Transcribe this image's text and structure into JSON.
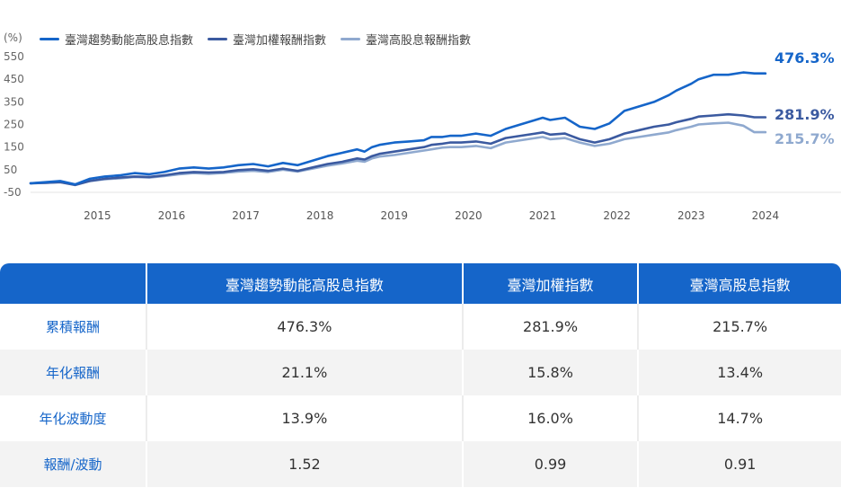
{
  "chart_data": {
    "type": "line",
    "unit_label": "(%)",
    "y_ticks": [
      "550",
      "450",
      "350",
      "250",
      "150",
      "50",
      "-50"
    ],
    "y_tick_values": [
      550,
      450,
      350,
      250,
      150,
      50,
      -50
    ],
    "ylim": [
      -50,
      570
    ],
    "x_ticks": [
      "2015",
      "2016",
      "2017",
      "2018",
      "2019",
      "2020",
      "2021",
      "2022",
      "2023",
      "2024"
    ],
    "xlim": [
      2014.6,
      2024.55
    ],
    "series": [
      {
        "name": "臺灣趨勢動能高股息指數",
        "color": "#1565c9",
        "end_label": "476.3%",
        "x": [
          2014.6,
          2014.8,
          2015.0,
          2015.2,
          2015.4,
          2015.6,
          2015.8,
          2016.0,
          2016.2,
          2016.4,
          2016.6,
          2016.8,
          2017.0,
          2017.2,
          2017.4,
          2017.6,
          2017.8,
          2018.0,
          2018.2,
          2018.4,
          2018.6,
          2018.8,
          2019.0,
          2019.1,
          2019.2,
          2019.3,
          2019.5,
          2019.7,
          2019.9,
          2020.0,
          2020.15,
          2020.25,
          2020.4,
          2020.6,
          2020.8,
          2021.0,
          2021.2,
          2021.4,
          2021.5,
          2021.6,
          2021.8,
          2022.0,
          2022.2,
          2022.4,
          2022.6,
          2022.8,
          2023.0,
          2023.2,
          2023.3,
          2023.5,
          2023.6,
          2023.8,
          2024.0,
          2024.2,
          2024.35,
          2024.5
        ],
        "values": [
          -10,
          -5,
          0,
          -15,
          10,
          20,
          25,
          35,
          30,
          40,
          55,
          60,
          55,
          60,
          70,
          75,
          65,
          80,
          70,
          90,
          110,
          125,
          140,
          130,
          150,
          160,
          170,
          175,
          180,
          195,
          195,
          200,
          200,
          210,
          200,
          230,
          250,
          270,
          280,
          270,
          280,
          240,
          230,
          255,
          310,
          330,
          350,
          380,
          400,
          430,
          450,
          470,
          470,
          480,
          476,
          476
        ]
      },
      {
        "name": "臺灣加權報酬指數",
        "color": "#3b5aa0",
        "end_label": "281.9%",
        "x": [
          2014.6,
          2014.8,
          2015.0,
          2015.2,
          2015.4,
          2015.6,
          2015.8,
          2016.0,
          2016.2,
          2016.4,
          2016.6,
          2016.8,
          2017.0,
          2017.2,
          2017.4,
          2017.6,
          2017.8,
          2018.0,
          2018.2,
          2018.4,
          2018.6,
          2018.8,
          2019.0,
          2019.1,
          2019.2,
          2019.3,
          2019.5,
          2019.7,
          2019.9,
          2020.0,
          2020.15,
          2020.25,
          2020.4,
          2020.6,
          2020.8,
          2021.0,
          2021.2,
          2021.4,
          2021.5,
          2021.6,
          2021.8,
          2022.0,
          2022.2,
          2022.4,
          2022.6,
          2022.8,
          2023.0,
          2023.2,
          2023.3,
          2023.5,
          2023.6,
          2023.8,
          2024.0,
          2024.2,
          2024.35,
          2024.5
        ],
        "values": [
          -10,
          -8,
          -5,
          -18,
          0,
          10,
          15,
          20,
          18,
          25,
          35,
          40,
          38,
          40,
          48,
          52,
          45,
          55,
          45,
          60,
          75,
          85,
          100,
          95,
          110,
          120,
          130,
          140,
          150,
          160,
          165,
          170,
          170,
          175,
          165,
          190,
          200,
          210,
          215,
          205,
          210,
          185,
          170,
          185,
          210,
          225,
          240,
          250,
          260,
          275,
          285,
          290,
          295,
          290,
          282,
          282
        ]
      },
      {
        "name": "臺灣高股息報酬指數",
        "color": "#8fa9cf",
        "end_label": "215.7%",
        "x": [
          2014.6,
          2014.8,
          2015.0,
          2015.2,
          2015.4,
          2015.6,
          2015.8,
          2016.0,
          2016.2,
          2016.4,
          2016.6,
          2016.8,
          2017.0,
          2017.2,
          2017.4,
          2017.6,
          2017.8,
          2018.0,
          2018.2,
          2018.4,
          2018.6,
          2018.8,
          2019.0,
          2019.1,
          2019.2,
          2019.3,
          2019.5,
          2019.7,
          2019.9,
          2020.0,
          2020.15,
          2020.25,
          2020.4,
          2020.6,
          2020.8,
          2021.0,
          2021.2,
          2021.4,
          2021.5,
          2021.6,
          2021.8,
          2022.0,
          2022.2,
          2022.4,
          2022.6,
          2022.8,
          2023.0,
          2023.2,
          2023.3,
          2023.5,
          2023.6,
          2023.8,
          2024.0,
          2024.2,
          2024.35,
          2024.5
        ],
        "values": [
          -10,
          -8,
          -5,
          -15,
          0,
          8,
          12,
          18,
          15,
          22,
          30,
          35,
          32,
          36,
          42,
          45,
          40,
          50,
          42,
          55,
          68,
          78,
          90,
          85,
          100,
          108,
          115,
          125,
          135,
          140,
          148,
          150,
          150,
          155,
          145,
          170,
          180,
          190,
          195,
          185,
          190,
          170,
          155,
          165,
          185,
          195,
          205,
          215,
          225,
          240,
          250,
          255,
          258,
          245,
          216,
          216
        ]
      }
    ]
  },
  "table": {
    "headers": [
      "",
      "臺灣趨勢動能高股息指數",
      "臺灣加權指數",
      "臺灣高股息指數"
    ],
    "rows": [
      {
        "label": "累積報酬",
        "values": [
          "476.3%",
          "281.9%",
          "215.7%"
        ]
      },
      {
        "label": "年化報酬",
        "values": [
          "21.1%",
          "15.8%",
          "13.4%"
        ]
      },
      {
        "label": "年化波動度",
        "values": [
          "13.9%",
          "16.0%",
          "14.7%"
        ]
      },
      {
        "label": "報酬/波動",
        "values": [
          "1.52",
          "0.99",
          "0.91"
        ]
      }
    ]
  },
  "colors": {
    "header_bg": "#1565c9",
    "row_alt_bg": "#f3f3f3",
    "label_text": "#1565c9"
  }
}
